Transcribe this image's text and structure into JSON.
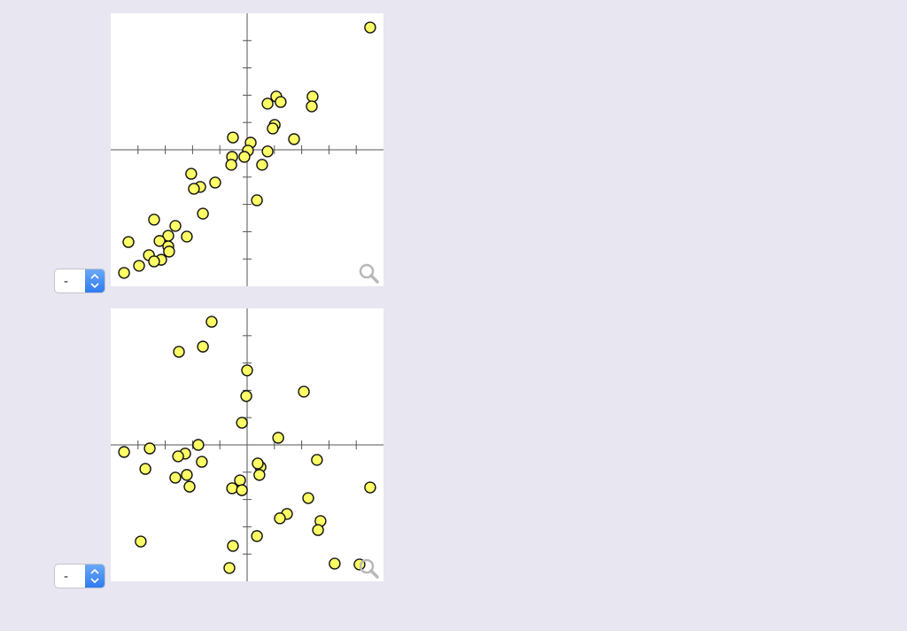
{
  "chart_data": [
    {
      "type": "scatter",
      "color": "#ffff66",
      "xlim": [
        -5,
        5
      ],
      "ylim": [
        -5,
        5
      ],
      "xticks": [
        -4,
        -3,
        -2,
        -1,
        1,
        2,
        3,
        4
      ],
      "yticks": [
        -4,
        -3,
        -2,
        -1,
        1,
        2,
        3,
        4
      ],
      "x": [
        4.51,
        2.4,
        2.37,
        1.07,
        0.75,
        1.23,
        1.01,
        0.94,
        1.72,
        -0.52,
        0.13,
        0.03,
        -0.1,
        -0.55,
        -0.58,
        0.75,
        0.55,
        0.36,
        -2.05,
        -1.72,
        -1.95,
        -1.17,
        -1.62,
        -3.41,
        -2.63,
        -2.21,
        -2.89,
        -3.21,
        -2.89,
        -4.35,
        -2.86,
        -3.6,
        -3.15,
        -3.41,
        -3.96,
        -4.51
      ],
      "values": [
        4.48,
        1.95,
        1.59,
        1.95,
        1.69,
        1.75,
        0.91,
        0.78,
        0.39,
        0.45,
        0.26,
        -0.03,
        -0.26,
        -0.26,
        -0.55,
        -0.06,
        -0.55,
        -1.85,
        -0.88,
        -1.36,
        -1.43,
        -1.2,
        -2.34,
        -2.56,
        -2.79,
        -3.18,
        -3.15,
        -3.34,
        -3.54,
        -3.38,
        -3.73,
        -3.86,
        -4.03,
        -4.09,
        -4.25,
        -4.51
      ]
    },
    {
      "type": "scatter",
      "color": "#ffff66",
      "xlim": [
        -5,
        5
      ],
      "ylim": [
        -5,
        5
      ],
      "xticks": [
        -4,
        -3,
        -2,
        -1,
        1,
        2,
        3,
        4
      ],
      "yticks": [
        -4,
        -3,
        -2,
        -1,
        1,
        2,
        3,
        4
      ],
      "x": [
        -1.3,
        -1.62,
        -2.5,
        0,
        -0.03,
        2.08,
        -0.19,
        1.14,
        -4.51,
        -3.57,
        -1.79,
        -2.27,
        -2.53,
        -1.66,
        -3.73,
        2.56,
        0.49,
        0.39,
        0.45,
        -2.21,
        -2.63,
        -2.11,
        -0.26,
        -0.55,
        -0.19,
        4.51,
        2.24,
        2.69,
        1.46,
        1.2,
        2.6,
        0.36,
        -3.9,
        -0.52,
        3.21,
        4.12,
        -0.65
      ],
      "values": [
        4.51,
        3.6,
        3.41,
        2.73,
        1.79,
        1.95,
        0.81,
        0.26,
        -0.26,
        -0.13,
        0,
        -0.32,
        -0.42,
        -0.62,
        -0.88,
        -0.55,
        -0.81,
        -0.68,
        -1.1,
        -1.1,
        -1.2,
        -1.53,
        -1.3,
        -1.59,
        -1.66,
        -1.56,
        -1.95,
        -2.79,
        -2.53,
        -2.69,
        -3.12,
        -3.34,
        -3.54,
        -3.7,
        -4.35,
        -4.38,
        -4.51
      ]
    }
  ],
  "controls": [
    {
      "selected": "-"
    },
    {
      "selected": "-"
    }
  ]
}
